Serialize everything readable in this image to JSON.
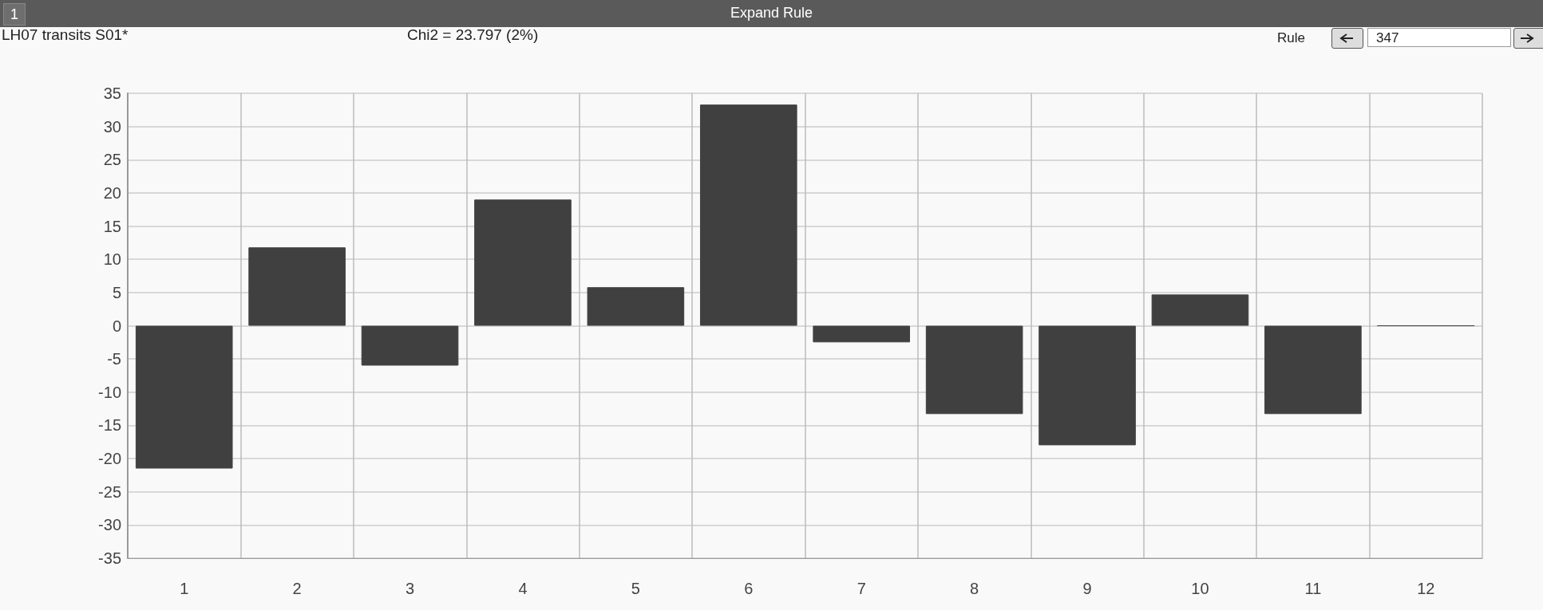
{
  "chart_data": {
    "type": "bar",
    "title": "Expand Rule",
    "subtitle": "LH07 transits S01*",
    "annotations": [
      "1",
      "Chi2 = 23.797 (2%)",
      "Rule",
      "347"
    ],
    "categories": [
      "1",
      "2",
      "3",
      "4",
      "5",
      "6",
      "7",
      "8",
      "9",
      "10",
      "11",
      "12"
    ],
    "values": [
      -21.5,
      11.8,
      -6,
      19,
      5.8,
      33.3,
      -2.5,
      -13.3,
      -18,
      4.7,
      -13.3,
      0
    ],
    "color": "#404040",
    "ylim": [
      -35,
      35
    ],
    "yticks": [
      -35,
      -30,
      -25,
      -20,
      -15,
      -10,
      -5,
      0,
      5,
      10,
      15,
      20,
      25,
      30,
      35
    ],
    "grid": true
  }
}
